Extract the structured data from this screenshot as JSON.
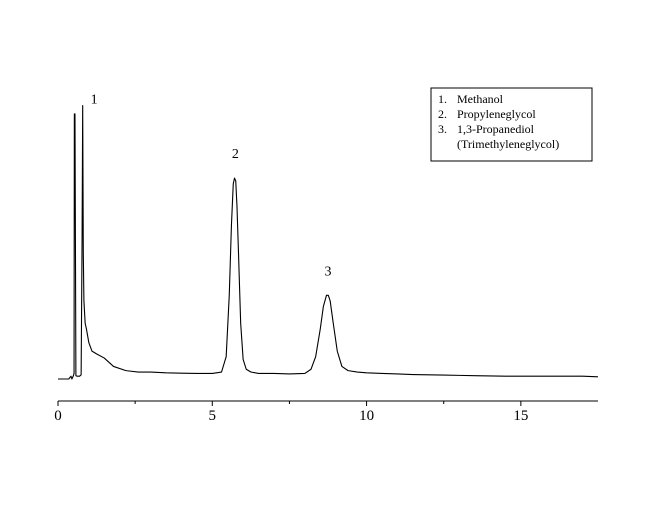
{
  "chart_data": {
    "type": "line",
    "title": "",
    "xlabel": "",
    "ylabel": "",
    "xlim": [
      0,
      17.5
    ],
    "ylim": [
      0,
      1
    ],
    "x_ticks": [
      {
        "value": 0,
        "label": "0"
      },
      {
        "value": 5,
        "label": "5"
      },
      {
        "value": 10,
        "label": "10"
      },
      {
        "value": 15,
        "label": "15"
      }
    ],
    "x_minor_ticks": [
      2.5,
      7.5,
      12.5
    ],
    "grid": false,
    "legend_position": "top-right",
    "legend": [
      {
        "number": "1.",
        "lines": [
          "Methanol"
        ]
      },
      {
        "number": "2.",
        "lines": [
          "Propyleneglycol"
        ]
      },
      {
        "number": "3.",
        "lines": [
          "1,3-Propanediol",
          "(Trimethyleneglycol)"
        ]
      }
    ],
    "peaks": [
      {
        "label": "1",
        "x": 0.8,
        "height": 0.98
      },
      {
        "label": "2",
        "x": 5.75,
        "height": 0.72
      },
      {
        "label": "3",
        "x": 8.75,
        "height": 0.3
      }
    ],
    "signal": {
      "x": [
        0,
        0.2,
        0.35,
        0.42,
        0.45,
        0.5,
        0.52,
        0.53,
        0.55,
        0.58,
        0.62,
        0.7,
        0.75,
        0.78,
        0.8,
        0.82,
        0.84,
        0.88,
        0.92,
        1.0,
        1.1,
        1.25,
        1.5,
        1.8,
        2.2,
        2.6,
        3.0,
        3.5,
        4.0,
        4.5,
        5.0,
        5.3,
        5.45,
        5.55,
        5.62,
        5.68,
        5.72,
        5.76,
        5.8,
        5.85,
        5.92,
        6.0,
        6.1,
        6.25,
        6.5,
        7.0,
        7.5,
        8.0,
        8.2,
        8.35,
        8.5,
        8.6,
        8.7,
        8.76,
        8.82,
        8.92,
        9.05,
        9.2,
        9.4,
        9.7,
        10.0,
        10.5,
        11.0,
        11.5,
        12.0,
        12.5,
        13.0,
        13.5,
        14.0,
        14.5,
        15.0,
        15.5,
        16.0,
        16.5,
        17.0,
        17.5
      ],
      "y": [
        0.0,
        0.0,
        0.0,
        0.01,
        0.0,
        0.012,
        0.02,
        0.95,
        0.95,
        0.012,
        0.01,
        0.01,
        0.015,
        0.5,
        0.98,
        0.45,
        0.28,
        0.2,
        0.18,
        0.13,
        0.1,
        0.09,
        0.075,
        0.045,
        0.03,
        0.025,
        0.025,
        0.022,
        0.021,
        0.02,
        0.02,
        0.025,
        0.08,
        0.3,
        0.55,
        0.7,
        0.72,
        0.71,
        0.62,
        0.45,
        0.2,
        0.07,
        0.035,
        0.025,
        0.02,
        0.02,
        0.018,
        0.02,
        0.035,
        0.08,
        0.18,
        0.26,
        0.3,
        0.3,
        0.28,
        0.2,
        0.1,
        0.045,
        0.03,
        0.025,
        0.022,
        0.02,
        0.018,
        0.016,
        0.015,
        0.014,
        0.013,
        0.012,
        0.011,
        0.01,
        0.01,
        0.01,
        0.01,
        0.01,
        0.01,
        0.008
      ]
    }
  }
}
